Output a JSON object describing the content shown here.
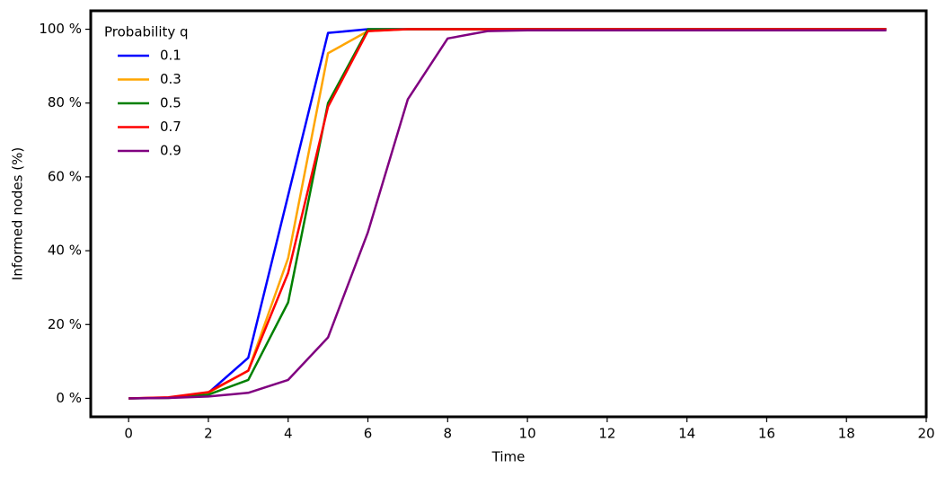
{
  "chart_data": {
    "type": "line",
    "xlabel": "Time",
    "ylabel": "Informed nodes (%)",
    "legend_title": "Probability q",
    "legend": "upper left",
    "x": [
      0,
      1,
      2,
      3,
      4,
      5,
      6,
      7,
      8,
      9,
      10,
      11,
      12,
      13,
      14,
      15,
      16,
      17,
      18,
      19
    ],
    "series": [
      {
        "name": "0.1",
        "color": "#0000ff",
        "values": [
          0,
          0.2,
          1.5,
          11,
          55,
          99,
          100,
          100,
          100,
          100,
          100,
          100,
          100,
          100,
          100,
          100,
          100,
          100,
          100,
          100
        ]
      },
      {
        "name": "0.3",
        "color": "#ffa500",
        "values": [
          0,
          0.2,
          1.5,
          7.5,
          38,
          93.5,
          99.5,
          100,
          100,
          100,
          100,
          100,
          100,
          100,
          100,
          100,
          100,
          100,
          100,
          100
        ]
      },
      {
        "name": "0.5",
        "color": "#008000",
        "values": [
          0,
          0.1,
          1,
          5,
          26,
          80,
          100,
          100,
          100,
          100,
          100,
          100,
          100,
          100,
          100,
          100,
          100,
          100,
          100,
          100
        ]
      },
      {
        "name": "0.7",
        "color": "#ff0000",
        "values": [
          0,
          0.3,
          1.7,
          7.5,
          34,
          79,
          99.5,
          100,
          100,
          100,
          100,
          100,
          100,
          100,
          100,
          100,
          100,
          100,
          100,
          100
        ]
      },
      {
        "name": "0.9",
        "color": "#800080",
        "values": [
          0,
          0.1,
          0.5,
          1.5,
          5,
          16.5,
          45,
          81,
          97.5,
          99.5,
          99.7,
          99.7,
          99.7,
          99.7,
          99.7,
          99.7,
          99.7,
          99.7,
          99.7,
          99.7
        ]
      }
    ],
    "xlim": [
      -0.95,
      20
    ],
    "ylim": [
      -5,
      105
    ],
    "xticks": [
      0,
      2,
      4,
      6,
      8,
      10,
      12,
      14,
      16,
      18,
      20
    ],
    "yticks": [
      {
        "value": 0,
        "label": "0 %"
      },
      {
        "value": 20,
        "label": "20 %"
      },
      {
        "value": 40,
        "label": "40 %"
      },
      {
        "value": 60,
        "label": "60 %"
      },
      {
        "value": 80,
        "label": "80 %"
      },
      {
        "value": 100,
        "label": "100 %"
      }
    ]
  }
}
